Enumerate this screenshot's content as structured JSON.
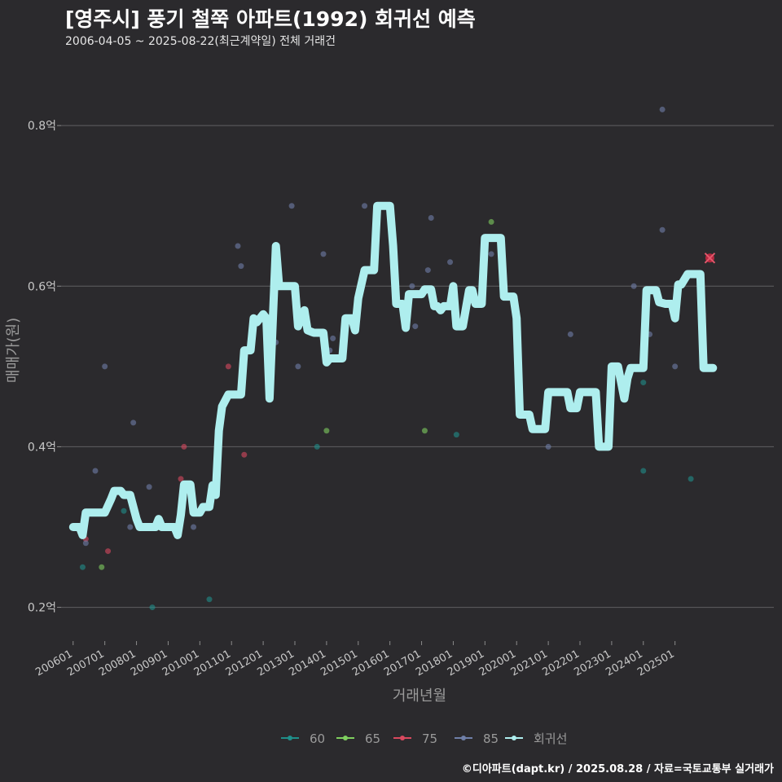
{
  "title": "[영주시] 풍기 철쭉 아파트(1992) 회귀선 예측",
  "subtitle": "2006-04-05 ~ 2025-08-22(최근계약일) 전체 거래건",
  "footer": "©디아파트(dapt.kr) / 2025.08.28 / 자료=국토교통부 실거래가",
  "colors": {
    "background": "#2b2a2d",
    "grid": "#5f5f62",
    "regression": "#aeeeee",
    "s60": "#1f8f8a",
    "s65": "#7fcf5f",
    "s75": "#d9495f",
    "s85": "#6f7fa8",
    "forecast": "#b5283f"
  },
  "chart_data": {
    "type": "scatter",
    "xlabel": "거래년월",
    "ylabel": "매매가(원)",
    "ylim": [
      0.16,
      0.86
    ],
    "y_ticks": [
      {
        "value": 0.2,
        "label": "0.2억"
      },
      {
        "value": 0.4,
        "label": "0.4억"
      },
      {
        "value": 0.6,
        "label": "0.6억"
      },
      {
        "value": 0.8,
        "label": "0.8억"
      }
    ],
    "x_ticks": [
      {
        "value": 2006.0,
        "label": "200601"
      },
      {
        "value": 2007.0,
        "label": "200701"
      },
      {
        "value": 2008.0,
        "label": "200801"
      },
      {
        "value": 2009.0,
        "label": "200901"
      },
      {
        "value": 2010.0,
        "label": "201001"
      },
      {
        "value": 2011.0,
        "label": "201101"
      },
      {
        "value": 2012.0,
        "label": "201201"
      },
      {
        "value": 2013.0,
        "label": "201301"
      },
      {
        "value": 2014.0,
        "label": "201401"
      },
      {
        "value": 2015.0,
        "label": "201501"
      },
      {
        "value": 2016.0,
        "label": "201601"
      },
      {
        "value": 2017.0,
        "label": "201701"
      },
      {
        "value": 2018.0,
        "label": "201801"
      },
      {
        "value": 2019.0,
        "label": "201901"
      },
      {
        "value": 2020.0,
        "label": "202001"
      },
      {
        "value": 2021.0,
        "label": "202101"
      },
      {
        "value": 2022.0,
        "label": "202201"
      },
      {
        "value": 2023.0,
        "label": "202301"
      },
      {
        "value": 2024.0,
        "label": "202401"
      },
      {
        "value": 2025.0,
        "label": "202501"
      }
    ],
    "xlim": [
      2005.62,
      2028.12
    ],
    "legend": [
      {
        "key": "s60",
        "label": "60"
      },
      {
        "key": "s65",
        "label": "65"
      },
      {
        "key": "s75",
        "label": "75"
      },
      {
        "key": "s85",
        "label": "85"
      },
      {
        "key": "regression",
        "label": "회귀선"
      }
    ],
    "series": [
      {
        "name": "60",
        "key": "s60",
        "points": [
          [
            2006.3,
            0.25
          ],
          [
            2007.6,
            0.32
          ],
          [
            2008.5,
            0.2
          ],
          [
            2010.3,
            0.21
          ],
          [
            2013.7,
            0.4
          ],
          [
            2018.1,
            0.415
          ],
          [
            2024.0,
            0.48
          ],
          [
            2024.0,
            0.37
          ],
          [
            2025.5,
            0.36
          ]
        ]
      },
      {
        "name": "65",
        "key": "s65",
        "points": [
          [
            2006.9,
            0.25
          ],
          [
            2014.0,
            0.42
          ],
          [
            2017.1,
            0.42
          ],
          [
            2019.2,
            0.68
          ]
        ]
      },
      {
        "name": "75",
        "key": "s75",
        "points": [
          [
            2006.4,
            0.285
          ],
          [
            2007.1,
            0.27
          ],
          [
            2009.4,
            0.36
          ],
          [
            2009.5,
            0.4
          ],
          [
            2010.9,
            0.5
          ],
          [
            2011.4,
            0.39
          ]
        ]
      },
      {
        "name": "85",
        "key": "s85",
        "points": [
          [
            2006.4,
            0.28
          ],
          [
            2006.7,
            0.37
          ],
          [
            2007.0,
            0.5
          ],
          [
            2007.8,
            0.3
          ],
          [
            2007.9,
            0.43
          ],
          [
            2008.4,
            0.35
          ],
          [
            2009.8,
            0.3
          ],
          [
            2011.2,
            0.65
          ],
          [
            2011.3,
            0.625
          ],
          [
            2012.4,
            0.53
          ],
          [
            2012.9,
            0.7
          ],
          [
            2013.1,
            0.5
          ],
          [
            2013.9,
            0.64
          ],
          [
            2014.1,
            0.52
          ],
          [
            2014.2,
            0.535
          ],
          [
            2015.2,
            0.7
          ],
          [
            2016.7,
            0.6
          ],
          [
            2016.8,
            0.55
          ],
          [
            2017.2,
            0.62
          ],
          [
            2017.3,
            0.685
          ],
          [
            2017.9,
            0.63
          ],
          [
            2019.2,
            0.64
          ],
          [
            2021.0,
            0.4
          ],
          [
            2021.7,
            0.54
          ],
          [
            2023.7,
            0.6
          ],
          [
            2024.2,
            0.54
          ],
          [
            2024.6,
            0.67
          ],
          [
            2024.6,
            0.82
          ],
          [
            2025.0,
            0.5
          ]
        ]
      }
    ],
    "regression": [
      [
        2006.0,
        0.3
      ],
      [
        2006.2,
        0.3
      ],
      [
        2006.3,
        0.29
      ],
      [
        2006.4,
        0.318
      ],
      [
        2007.0,
        0.318
      ],
      [
        2007.2,
        0.335
      ],
      [
        2007.3,
        0.345
      ],
      [
        2007.5,
        0.345
      ],
      [
        2007.6,
        0.34
      ],
      [
        2007.8,
        0.34
      ],
      [
        2008.0,
        0.31
      ],
      [
        2008.1,
        0.3
      ],
      [
        2008.6,
        0.3
      ],
      [
        2008.7,
        0.31
      ],
      [
        2008.8,
        0.3
      ],
      [
        2009.2,
        0.3
      ],
      [
        2009.3,
        0.29
      ],
      [
        2009.4,
        0.315
      ],
      [
        2009.5,
        0.353
      ],
      [
        2009.7,
        0.353
      ],
      [
        2009.8,
        0.318
      ],
      [
        2010.0,
        0.318
      ],
      [
        2010.1,
        0.325
      ],
      [
        2010.3,
        0.325
      ],
      [
        2010.4,
        0.352
      ],
      [
        2010.5,
        0.34
      ],
      [
        2010.6,
        0.42
      ],
      [
        2010.7,
        0.45
      ],
      [
        2010.9,
        0.465
      ],
      [
        2011.3,
        0.465
      ],
      [
        2011.4,
        0.52
      ],
      [
        2011.6,
        0.52
      ],
      [
        2011.7,
        0.56
      ],
      [
        2011.8,
        0.555
      ],
      [
        2012.0,
        0.565
      ],
      [
        2012.1,
        0.56
      ],
      [
        2012.2,
        0.46
      ],
      [
        2012.4,
        0.65
      ],
      [
        2012.5,
        0.6
      ],
      [
        2013.0,
        0.6
      ],
      [
        2013.1,
        0.55
      ],
      [
        2013.3,
        0.57
      ],
      [
        2013.4,
        0.545
      ],
      [
        2013.6,
        0.542
      ],
      [
        2013.9,
        0.542
      ],
      [
        2014.0,
        0.505
      ],
      [
        2014.1,
        0.51
      ],
      [
        2014.5,
        0.51
      ],
      [
        2014.6,
        0.56
      ],
      [
        2014.8,
        0.56
      ],
      [
        2014.9,
        0.545
      ],
      [
        2015.0,
        0.585
      ],
      [
        2015.2,
        0.62
      ],
      [
        2015.5,
        0.62
      ],
      [
        2015.6,
        0.7
      ],
      [
        2016.0,
        0.7
      ],
      [
        2016.1,
        0.65
      ],
      [
        2016.2,
        0.578
      ],
      [
        2016.4,
        0.578
      ],
      [
        2016.5,
        0.548
      ],
      [
        2016.6,
        0.59
      ],
      [
        2017.0,
        0.59
      ],
      [
        2017.1,
        0.596
      ],
      [
        2017.3,
        0.596
      ],
      [
        2017.4,
        0.575
      ],
      [
        2017.5,
        0.575
      ],
      [
        2017.6,
        0.57
      ],
      [
        2017.7,
        0.575
      ],
      [
        2017.9,
        0.575
      ],
      [
        2018.0,
        0.6
      ],
      [
        2018.1,
        0.55
      ],
      [
        2018.3,
        0.55
      ],
      [
        2018.5,
        0.595
      ],
      [
        2018.6,
        0.595
      ],
      [
        2018.7,
        0.578
      ],
      [
        2018.9,
        0.578
      ],
      [
        2019.0,
        0.66
      ],
      [
        2019.5,
        0.66
      ],
      [
        2019.6,
        0.587
      ],
      [
        2019.9,
        0.587
      ],
      [
        2020.0,
        0.56
      ],
      [
        2020.1,
        0.44
      ],
      [
        2020.4,
        0.44
      ],
      [
        2020.5,
        0.422
      ],
      [
        2020.9,
        0.422
      ],
      [
        2021.0,
        0.468
      ],
      [
        2021.6,
        0.468
      ],
      [
        2021.7,
        0.448
      ],
      [
        2021.9,
        0.448
      ],
      [
        2022.0,
        0.468
      ],
      [
        2022.5,
        0.468
      ],
      [
        2022.6,
        0.4
      ],
      [
        2022.9,
        0.4
      ],
      [
        2023.0,
        0.5
      ],
      [
        2023.2,
        0.5
      ],
      [
        2023.4,
        0.46
      ],
      [
        2023.5,
        0.485
      ],
      [
        2023.6,
        0.498
      ],
      [
        2024.0,
        0.498
      ],
      [
        2024.1,
        0.595
      ],
      [
        2024.4,
        0.595
      ],
      [
        2024.5,
        0.58
      ],
      [
        2024.7,
        0.578
      ],
      [
        2024.9,
        0.578
      ],
      [
        2025.0,
        0.56
      ],
      [
        2025.1,
        0.602
      ],
      [
        2025.2,
        0.602
      ],
      [
        2025.4,
        0.615
      ],
      [
        2025.8,
        0.615
      ],
      [
        2025.9,
        0.498
      ],
      [
        2026.2,
        0.498
      ]
    ],
    "forecast_point": [
      2026.1,
      0.635
    ]
  }
}
